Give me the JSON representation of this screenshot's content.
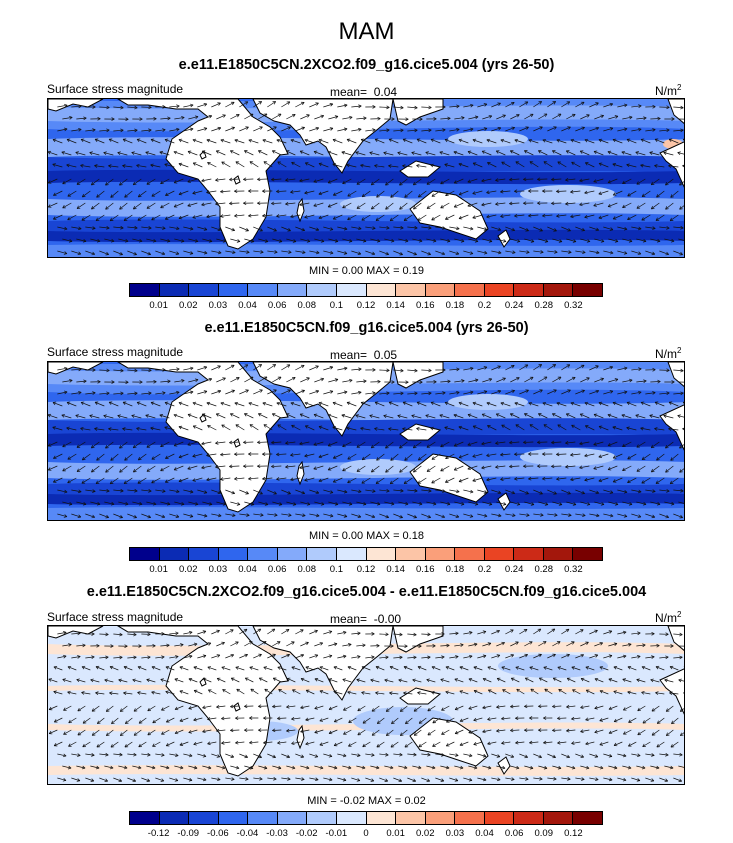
{
  "figure": {
    "season": "MAM"
  },
  "panels": [
    {
      "title": "e.e11.E1850C5CN.2XCO2.f09_g16.cice5.004 (yrs 26-50)",
      "left_label": "Surface stress magnitude",
      "mean_label": "mean=",
      "mean_value": "0.04",
      "units": "N/m",
      "units_exp": "2",
      "stats": "MIN =  0.00 MAX =  0.19",
      "colorbar": {
        "colors": [
          "#00008c",
          "#0b2bb4",
          "#1945d4",
          "#2f66ee",
          "#5789f7",
          "#84aafa",
          "#b0cbfc",
          "#dae8fe",
          "#fde5d4",
          "#fcc5a7",
          "#fa9f7a",
          "#f5714c",
          "#ea4423",
          "#cc2a17",
          "#a3170c",
          "#780000"
        ],
        "ticks": [
          "0.01",
          "0.02",
          "0.03",
          "0.04",
          "0.06",
          "0.08",
          "0.1",
          "0.12",
          "0.14",
          "0.16",
          "0.18",
          "0.2",
          "0.24",
          "0.28",
          "0.32"
        ]
      }
    },
    {
      "title": "e.e11.E1850C5CN.f09_g16.cice5.004 (yrs 26-50)",
      "left_label": "Surface stress magnitude",
      "mean_label": "mean=",
      "mean_value": "0.05",
      "units": "N/m",
      "units_exp": "2",
      "stats": "MIN =  0.00 MAX =  0.18",
      "colorbar": {
        "colors": [
          "#00008c",
          "#0b2bb4",
          "#1945d4",
          "#2f66ee",
          "#5789f7",
          "#84aafa",
          "#b0cbfc",
          "#dae8fe",
          "#fde5d4",
          "#fcc5a7",
          "#fa9f7a",
          "#f5714c",
          "#ea4423",
          "#cc2a17",
          "#a3170c",
          "#780000"
        ],
        "ticks": [
          "0.01",
          "0.02",
          "0.03",
          "0.04",
          "0.06",
          "0.08",
          "0.1",
          "0.12",
          "0.14",
          "0.16",
          "0.18",
          "0.2",
          "0.24",
          "0.28",
          "0.32"
        ]
      }
    },
    {
      "title": "e.e11.E1850C5CN.2XCO2.f09_g16.cice5.004 - e.e11.E1850C5CN.f09_g16.cice5.004",
      "left_label": "Surface stress magnitude",
      "mean_label": "mean=",
      "mean_value": "-0.00",
      "units": "N/m",
      "units_exp": "2",
      "stats": "MIN = -0.02 MAX =  0.02",
      "colorbar": {
        "colors": [
          "#00008c",
          "#0b2bb4",
          "#1945d4",
          "#2f66ee",
          "#5789f7",
          "#84aafa",
          "#b0cbfc",
          "#dae8fe",
          "#fde5d4",
          "#fcc5a7",
          "#fa9f7a",
          "#f5714c",
          "#ea4423",
          "#cc2a17",
          "#a3170c",
          "#780000"
        ],
        "ticks": [
          "-0.12",
          "-0.09",
          "-0.06",
          "-0.04",
          "-0.03",
          "-0.02",
          "-0.01",
          "0",
          "0.01",
          "0.02",
          "0.03",
          "0.04",
          "0.06",
          "0.09",
          "0.12"
        ]
      }
    }
  ]
}
